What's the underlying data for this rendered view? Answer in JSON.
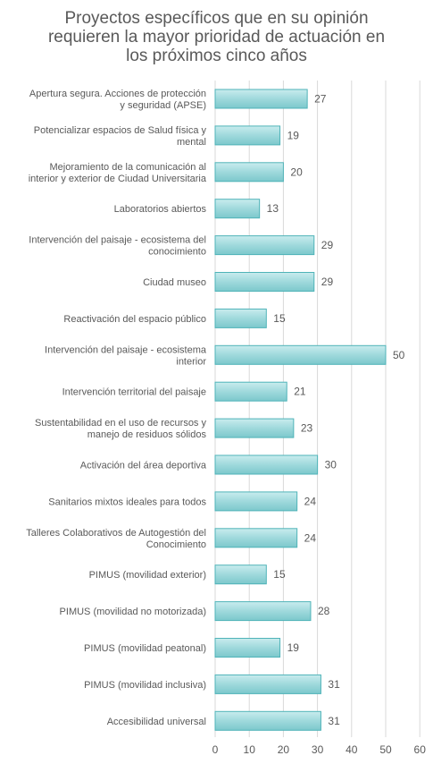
{
  "chart_data": {
    "type": "bar",
    "orientation": "horizontal",
    "title_lines": [
      "Proyectos específicos que en su opinión",
      "requieren la mayor prioridad de actuación en",
      "los próximos cinco años"
    ],
    "categories": [
      [
        "Apertura segura. Acciones de protección",
        "y seguridad (APSE)"
      ],
      [
        "Potencializar espacios de Salud física y",
        "mental"
      ],
      [
        "Mejoramiento de la comunicación al",
        "interior y exterior de Ciudad Universitaria"
      ],
      [
        "Laboratorios abiertos"
      ],
      [
        "Intervención del paisaje - ecosistema del",
        "conocimiento"
      ],
      [
        "Ciudad museo"
      ],
      [
        "Reactivación del espacio público"
      ],
      [
        "Intervención del paisaje - ecosistema",
        "interior"
      ],
      [
        "Intervención territorial del paisaje"
      ],
      [
        "Sustentabilidad en el uso de recursos y",
        "manejo de residuos sólidos"
      ],
      [
        "Activación del área deportiva"
      ],
      [
        "Sanitarios mixtos ideales para todos"
      ],
      [
        "Talleres Colaborativos de Autogestión del",
        "Conocimiento"
      ],
      [
        "PIMUS (movilidad exterior)"
      ],
      [
        "PIMUS (movilidad no motorizada)"
      ],
      [
        "PIMUS (movilidad peatonal)"
      ],
      [
        "PIMUS (movilidad inclusiva)"
      ],
      [
        "Accesibilidad universal"
      ]
    ],
    "values": [
      27,
      19,
      20,
      13,
      29,
      29,
      15,
      50,
      21,
      23,
      30,
      24,
      24,
      15,
      28,
      19,
      31,
      31
    ],
    "xlim": [
      0,
      60
    ],
    "xticks": [
      0,
      10,
      20,
      30,
      40,
      50,
      60
    ],
    "grid": "vertical",
    "legend": "none",
    "colors": {
      "bar_fill_top": "#c9ecee",
      "bar_fill_mid": "#9fd9dc",
      "bar_fill_bottom": "#7cc8cc",
      "bar_stroke": "#4fb3b8",
      "grid": "#d9d9d9",
      "text": "#595959"
    }
  }
}
